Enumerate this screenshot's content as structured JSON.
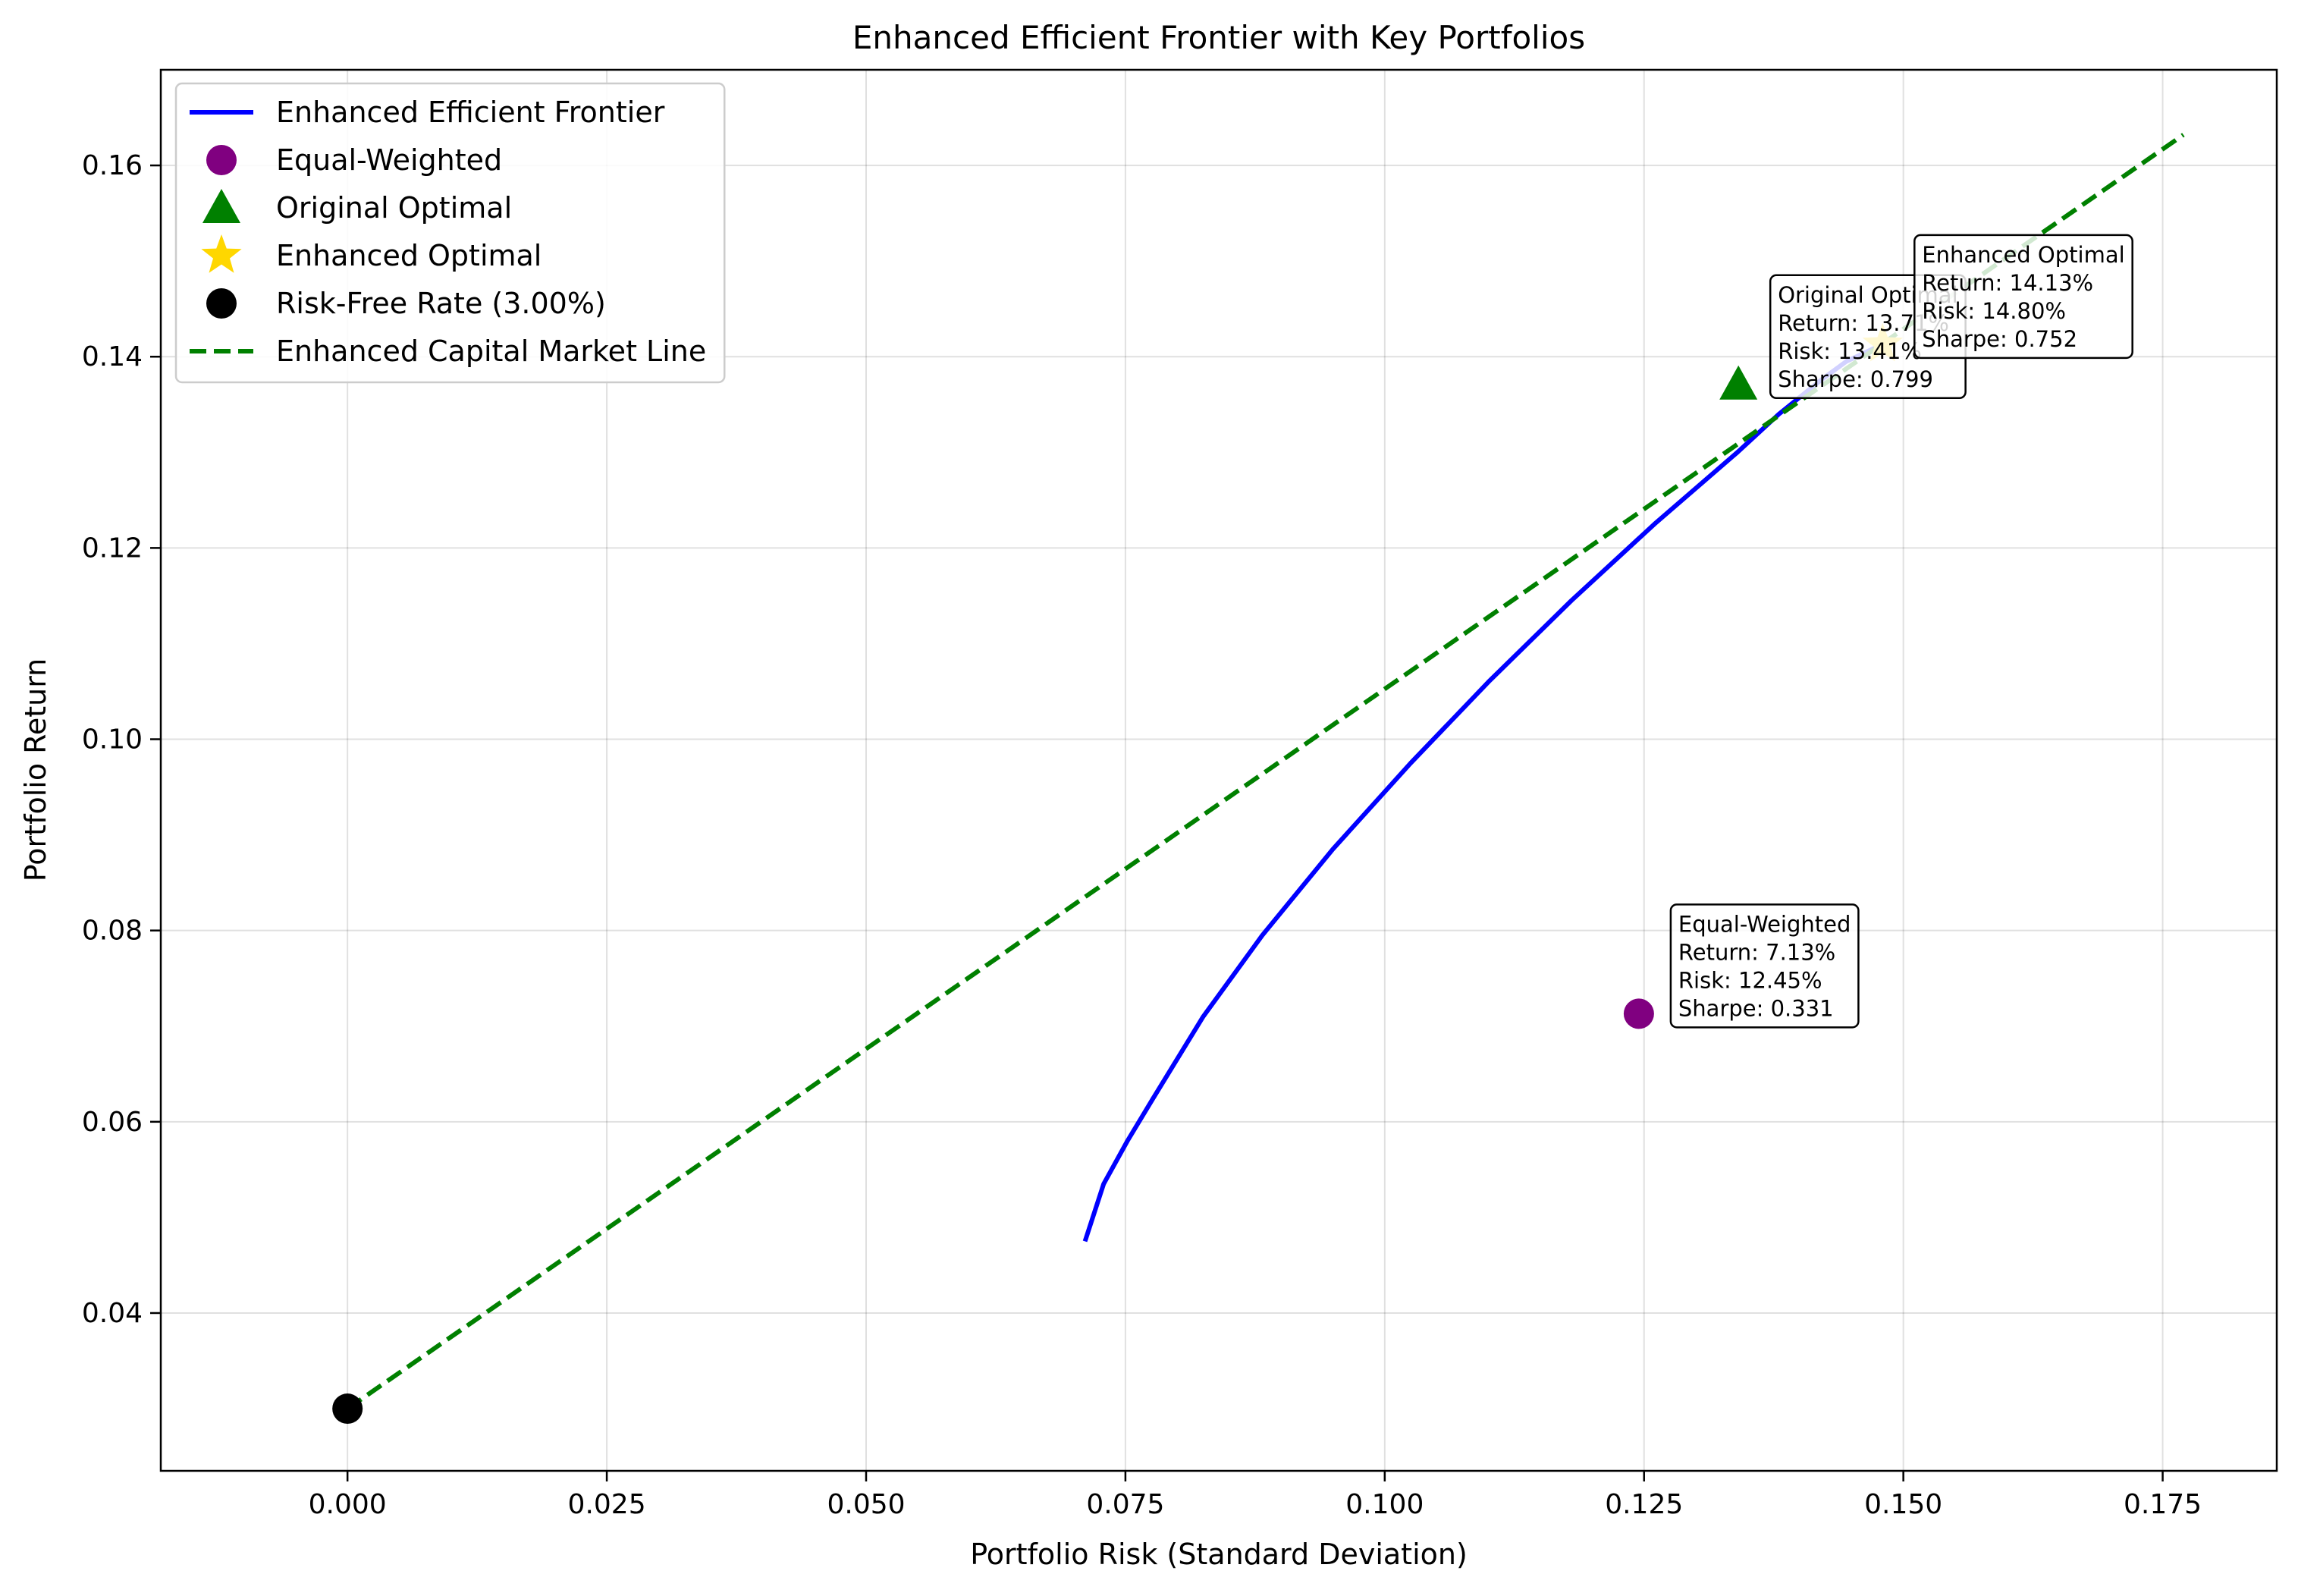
{
  "chart_data": {
    "type": "line",
    "title": "Enhanced Efficient Frontier with Key Portfolios",
    "xlabel": "Portfolio Risk (Standard Deviation)",
    "ylabel": "Portfolio Return",
    "xlim": [
      -0.018,
      0.186
    ],
    "ylim": [
      0.0235,
      0.17
    ],
    "xticks": [
      0.0,
      0.025,
      0.05,
      0.075,
      0.1,
      0.125,
      0.15,
      0.175
    ],
    "xtick_labels": [
      "0.000",
      "0.025",
      "0.050",
      "0.075",
      "0.100",
      "0.125",
      "0.150",
      "0.175"
    ],
    "yticks": [
      0.04,
      0.06,
      0.08,
      0.1,
      0.12,
      0.14,
      0.16
    ],
    "ytick_labels": [
      "0.04",
      "0.06",
      "0.08",
      "0.10",
      "0.12",
      "0.14",
      "0.16"
    ],
    "grid": true,
    "legend_position": "top-left",
    "series": [
      {
        "name": "Enhanced Efficient Frontier",
        "kind": "line",
        "color": "#0000ff",
        "points": [
          [
            0.0711,
            0.0475
          ],
          [
            0.0729,
            0.0535
          ],
          [
            0.0752,
            0.058
          ],
          [
            0.0777,
            0.0625
          ],
          [
            0.0825,
            0.071
          ],
          [
            0.0882,
            0.0795
          ],
          [
            0.095,
            0.0885
          ],
          [
            0.1025,
            0.0975
          ],
          [
            0.11,
            0.106
          ],
          [
            0.118,
            0.1145
          ],
          [
            0.126,
            0.1225
          ],
          [
            0.134,
            0.13
          ],
          [
            0.138,
            0.134
          ],
          [
            0.142,
            0.1375
          ],
          [
            0.1445,
            0.1395
          ],
          [
            0.148,
            0.1413
          ]
        ]
      },
      {
        "name": "Equal-Weighted",
        "kind": "marker",
        "marker": "circle",
        "color": "#800080",
        "points": [
          [
            0.1245,
            0.0713
          ]
        ]
      },
      {
        "name": "Original Optimal",
        "kind": "marker",
        "marker": "triangle",
        "color": "#008000",
        "points": [
          [
            0.1341,
            0.1371
          ]
        ]
      },
      {
        "name": "Enhanced Optimal",
        "kind": "marker",
        "marker": "star",
        "color": "#ffd700",
        "points": [
          [
            0.148,
            0.1413
          ]
        ]
      },
      {
        "name": "Risk-Free Rate (3.00%)",
        "kind": "marker",
        "marker": "circle",
        "color": "#000000",
        "points": [
          [
            0.0,
            0.03
          ]
        ]
      },
      {
        "name": "Enhanced Capital Market Line",
        "kind": "dashed-line",
        "color": "#008000",
        "points": [
          [
            0.0,
            0.03
          ],
          [
            0.177,
            0.1632
          ]
        ]
      }
    ],
    "annotations": [
      {
        "x": 0.1245,
        "y": 0.0713,
        "lines": [
          "Equal-Weighted",
          "Return: 7.13%",
          "Risk: 12.45%",
          "Sharpe: 0.331"
        ]
      },
      {
        "x": 0.1341,
        "y": 0.1371,
        "lines": [
          "Original Optimal",
          "Return: 13.71%",
          "Risk: 13.41%",
          "Sharpe: 0.799"
        ]
      },
      {
        "x": 0.148,
        "y": 0.1413,
        "lines": [
          "Enhanced Optimal",
          "Return: 14.13%",
          "Risk: 14.80%",
          "Sharpe: 0.752"
        ]
      }
    ]
  }
}
